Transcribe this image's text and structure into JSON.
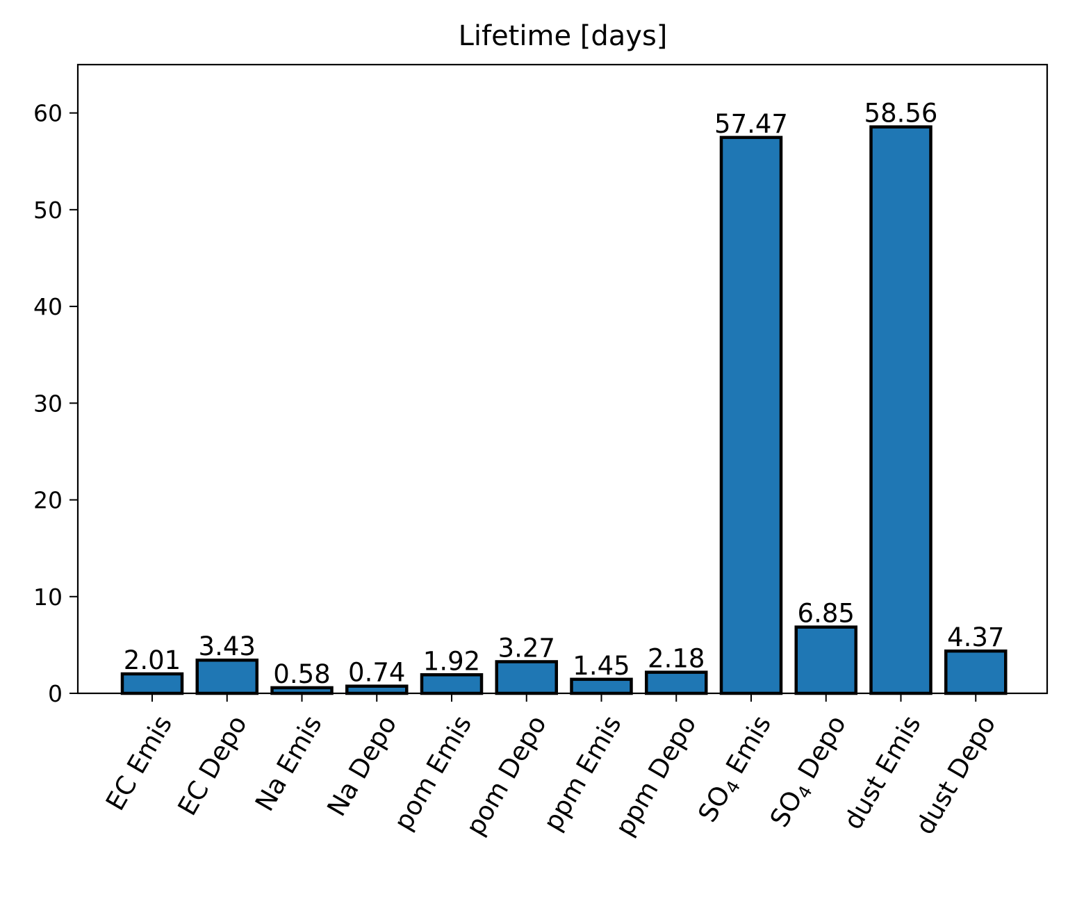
{
  "chart_data": {
    "type": "bar",
    "title": "Lifetime [days]",
    "xlabel": "",
    "ylabel": "",
    "categories": [
      {
        "label": "EC Emis",
        "sub": ""
      },
      {
        "label": "EC Depo",
        "sub": ""
      },
      {
        "label": "Na Emis",
        "sub": ""
      },
      {
        "label": "Na Depo",
        "sub": ""
      },
      {
        "label": "pom Emis",
        "sub": ""
      },
      {
        "label": "pom Depo",
        "sub": ""
      },
      {
        "label": "ppm Emis",
        "sub": ""
      },
      {
        "label": "ppm Depo",
        "sub": ""
      },
      {
        "label": "SO",
        "sub": "4",
        "rest": " Emis"
      },
      {
        "label": "SO",
        "sub": "4",
        "rest": " Depo"
      },
      {
        "label": "dust Emis",
        "sub": ""
      },
      {
        "label": "dust Depo",
        "sub": ""
      }
    ],
    "values": [
      2.01,
      3.43,
      0.58,
      0.74,
      1.92,
      3.27,
      1.45,
      2.18,
      57.47,
      6.85,
      58.56,
      4.37
    ],
    "value_labels": [
      "2.01",
      "3.43",
      "0.58",
      "0.74",
      "1.92",
      "3.27",
      "1.45",
      "2.18",
      "57.47",
      "6.85",
      "58.56",
      "4.37"
    ],
    "yticks": [
      0,
      10,
      20,
      30,
      40,
      50,
      60
    ],
    "ytick_labels": [
      "0",
      "10",
      "20",
      "30",
      "40",
      "50",
      "60"
    ],
    "ylim": [
      0,
      65
    ],
    "grid": false,
    "bar_color": "#1f77b4",
    "edge_color": "#000000"
  }
}
